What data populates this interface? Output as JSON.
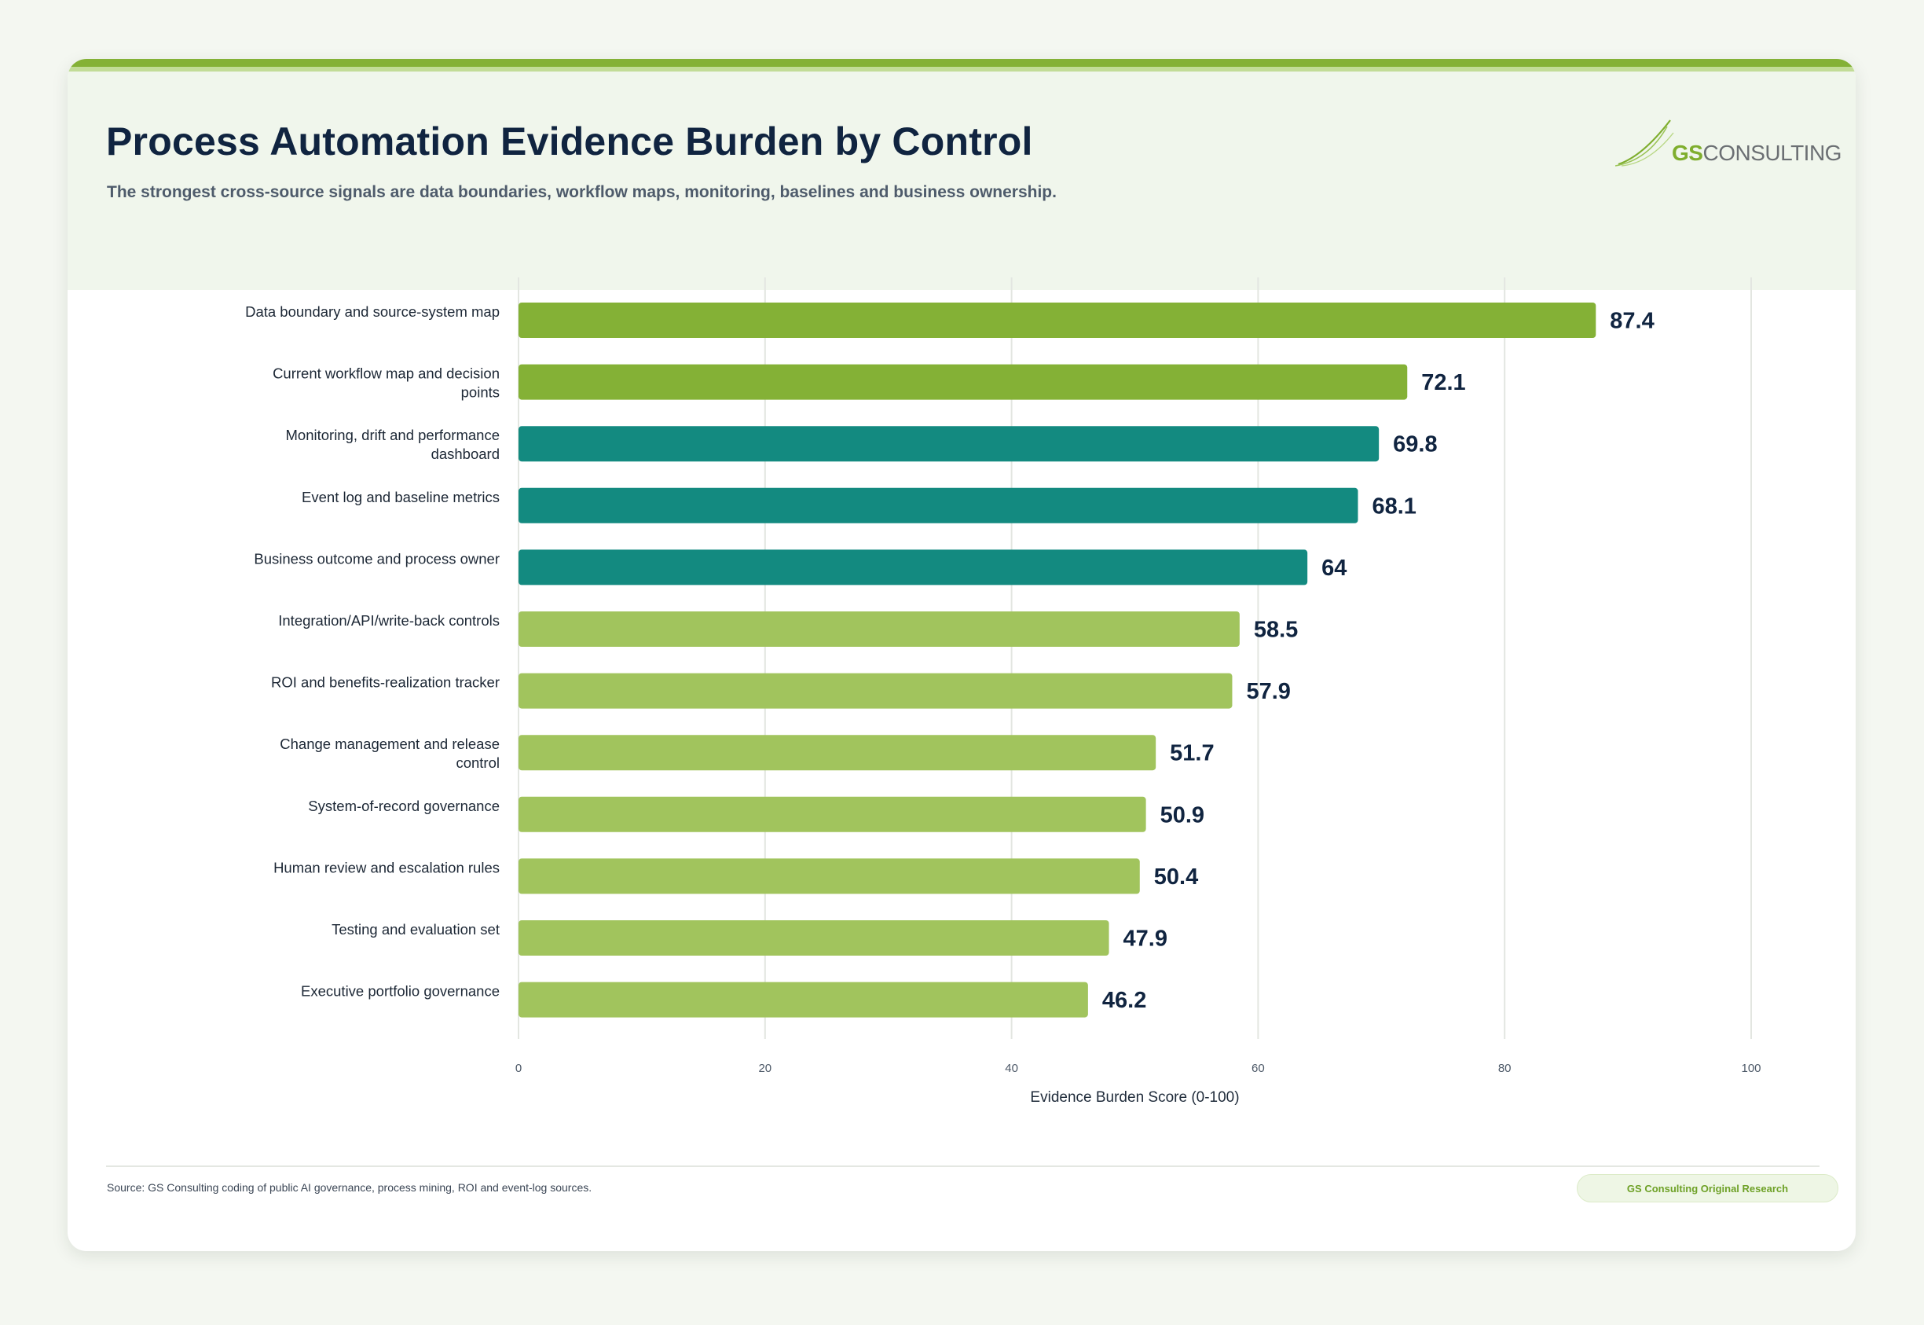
{
  "header": {
    "title": "Process Automation Evidence Burden by Control",
    "subtitle": "The strongest cross-source signals are data boundaries, workflow maps, monitoring, baselines and business ownership."
  },
  "logo": {
    "prefix": "GS",
    "suffix": "CONSULTING"
  },
  "chart_data": {
    "type": "bar",
    "orientation": "horizontal",
    "categories": [
      "Data boundary and source-system map",
      "Current workflow map and decision points",
      "Monitoring, drift and performance dashboard",
      "Event log and baseline metrics",
      "Business outcome and process owner",
      "Integration/API/write-back controls",
      "ROI and benefits-realization tracker",
      "Change management and release control",
      "System-of-record governance",
      "Human review and escalation rules",
      "Testing and evaluation set",
      "Executive portfolio governance"
    ],
    "values": [
      87.4,
      72.1,
      69.8,
      68.1,
      64,
      58.5,
      57.9,
      51.7,
      50.9,
      50.4,
      47.9,
      46.2
    ],
    "bar_colors": [
      "#84b136",
      "#84b136",
      "#138a80",
      "#138a80",
      "#138a80",
      "#a1c45d",
      "#a1c45d",
      "#a1c45d",
      "#a1c45d",
      "#a1c45d",
      "#a1c45d",
      "#a1c45d"
    ],
    "xlabel": "Evidence Burden Score (0-100)",
    "ylabel": "",
    "xlim": [
      0,
      100
    ],
    "xticks": [
      0,
      20,
      40,
      60,
      80,
      100
    ],
    "grid": true,
    "legend": "none"
  },
  "footer": {
    "source": "Source: GS Consulting coding of public AI governance, process mining, ROI and event-log sources.",
    "badge": "GS Consulting Original Research"
  }
}
